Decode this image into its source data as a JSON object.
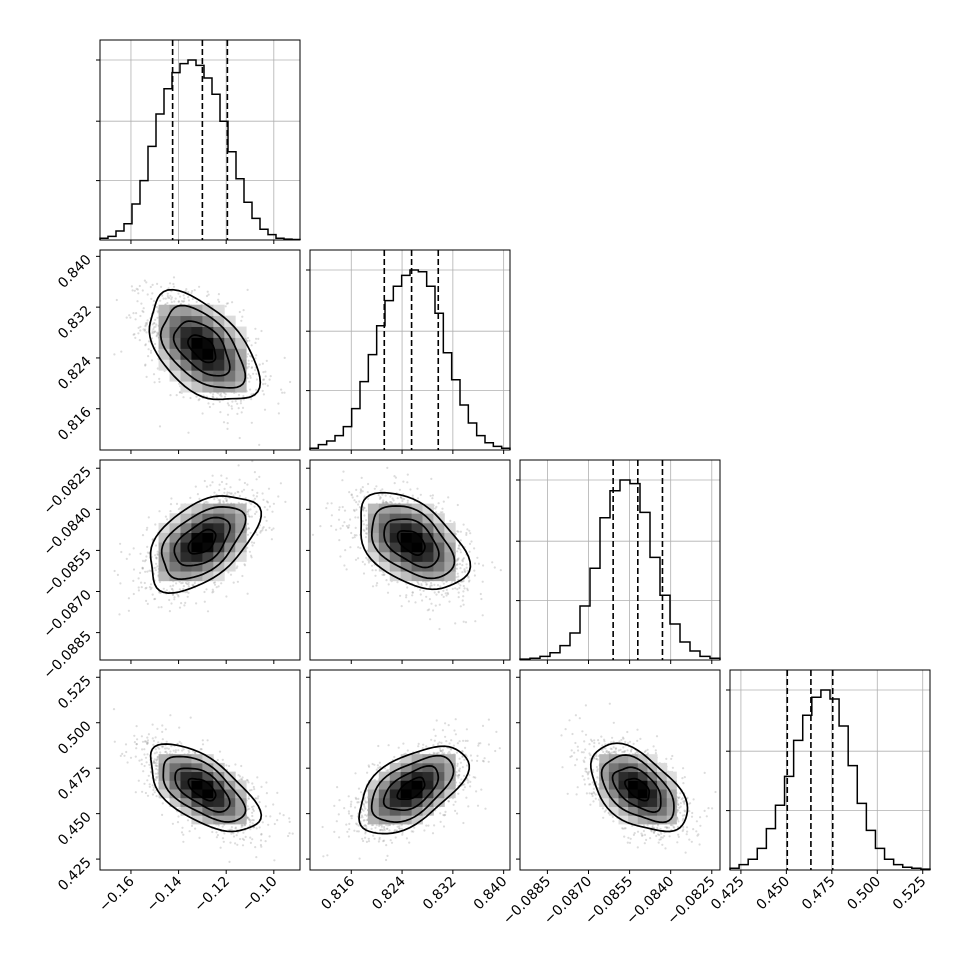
{
  "chart_data": {
    "type": "corner",
    "grid": true,
    "parameters": [
      {
        "mean": -0.13,
        "sd": 0.0115,
        "range": [
          -0.173,
          -0.089
        ],
        "ticks": [
          -0.16,
          -0.14,
          -0.12,
          -0.1
        ],
        "tick_labels": [
          "−0.16",
          "−0.14",
          "−0.12",
          "−0.10"
        ],
        "quantiles": [
          -0.1425,
          -0.13,
          -0.1195
        ],
        "hist_counts": [
          0.01,
          0.02,
          0.05,
          0.09,
          0.2,
          0.33,
          0.52,
          0.7,
          0.84,
          0.93,
          0.98,
          1.0,
          0.97,
          0.9,
          0.81,
          0.66,
          0.49,
          0.34,
          0.21,
          0.12,
          0.06,
          0.03,
          0.01,
          0.005,
          0.003
        ]
      },
      {
        "mean": 0.8255,
        "sd": 0.0043,
        "range": [
          0.8095,
          0.841
        ],
        "ticks": [
          0.816,
          0.824,
          0.832,
          0.84
        ],
        "tick_labels": [
          "0.816",
          "0.824",
          "0.832",
          "0.840"
        ],
        "quantiles": [
          0.8212,
          0.8255,
          0.8297
        ],
        "hist_counts": [
          0.01,
          0.03,
          0.05,
          0.08,
          0.13,
          0.23,
          0.38,
          0.53,
          0.69,
          0.83,
          0.91,
          0.97,
          1.0,
          0.99,
          0.91,
          0.76,
          0.54,
          0.39,
          0.25,
          0.15,
          0.08,
          0.04,
          0.02,
          0.01
        ]
      },
      {
        "mean": -0.0852,
        "sd": 0.00088,
        "range": [
          -0.0895,
          -0.0822
        ],
        "ticks": [
          -0.0885,
          -0.087,
          -0.0855,
          -0.084,
          -0.0825
        ],
        "tick_labels": [
          "−0.0885",
          "−0.0870",
          "−0.0855",
          "−0.0840",
          "−0.0825"
        ],
        "quantiles": [
          -0.0861,
          -0.0852,
          -0.0843
        ],
        "hist_counts": [
          0.005,
          0.01,
          0.02,
          0.04,
          0.08,
          0.15,
          0.3,
          0.51,
          0.79,
          0.94,
          1.0,
          0.98,
          0.82,
          0.57,
          0.36,
          0.2,
          0.1,
          0.05,
          0.02,
          0.01
        ]
      },
      {
        "mean": 0.4635,
        "sd": 0.012,
        "range": [
          0.419,
          0.529
        ],
        "ticks": [
          0.425,
          0.45,
          0.475,
          0.5,
          0.525
        ],
        "tick_labels": [
          "0.425",
          "0.450",
          "0.475",
          "0.500",
          "0.525"
        ],
        "quantiles": [
          0.4505,
          0.4635,
          0.4755
        ],
        "hist_counts": [
          0.01,
          0.03,
          0.06,
          0.12,
          0.23,
          0.36,
          0.52,
          0.72,
          0.86,
          0.96,
          1.0,
          0.95,
          0.8,
          0.58,
          0.37,
          0.22,
          0.12,
          0.06,
          0.03,
          0.015,
          0.01,
          0.005
        ]
      }
    ],
    "correlations": {
      "1-0": -0.5,
      "2-0": 0.5,
      "2-1": -0.45,
      "3-0": -0.6,
      "3-1": 0.55,
      "3-2": -0.5
    },
    "contour_levels_sigma": [
      0.5,
      1.0,
      1.5,
      2.0
    ]
  }
}
